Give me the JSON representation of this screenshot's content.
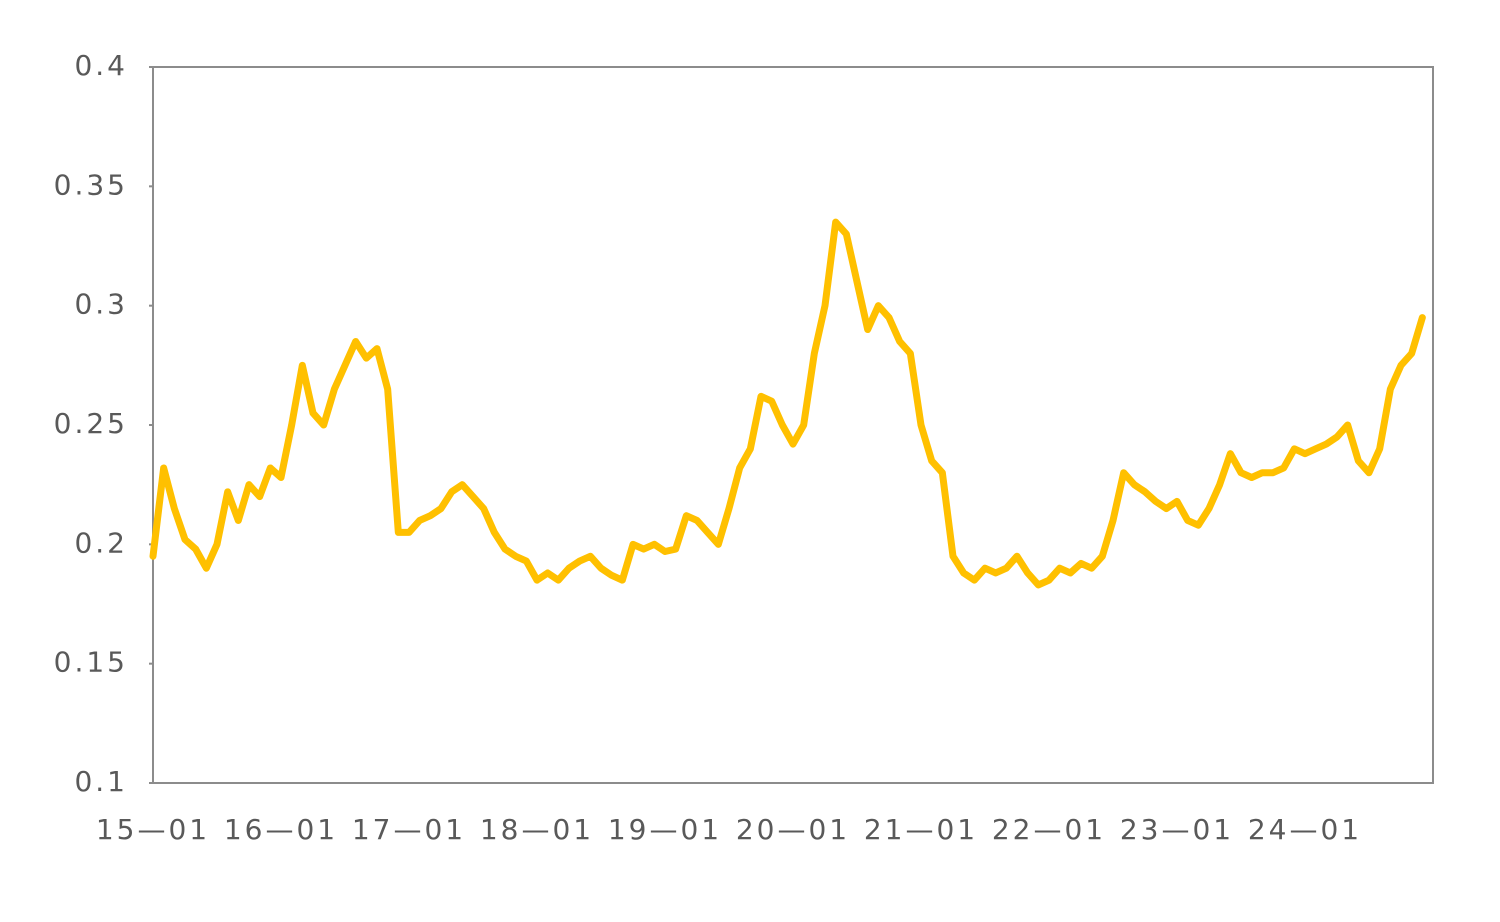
{
  "chart_data": {
    "type": "line",
    "categories": [
      "15—01",
      null,
      null,
      null,
      null,
      null,
      null,
      null,
      null,
      null,
      null,
      null,
      "16—01",
      null,
      null,
      null,
      null,
      null,
      null,
      null,
      null,
      null,
      null,
      null,
      "17—01",
      null,
      null,
      null,
      null,
      null,
      null,
      null,
      null,
      null,
      null,
      null,
      "18—01",
      null,
      null,
      null,
      null,
      null,
      null,
      null,
      null,
      null,
      null,
      null,
      "19—01",
      null,
      null,
      null,
      null,
      null,
      null,
      null,
      null,
      null,
      null,
      null,
      "20—01",
      null,
      null,
      null,
      null,
      null,
      null,
      null,
      null,
      null,
      null,
      null,
      "21—01",
      null,
      null,
      null,
      null,
      null,
      null,
      null,
      null,
      null,
      null,
      null,
      "22—01",
      null,
      null,
      null,
      null,
      null,
      null,
      null,
      null,
      null,
      null,
      null,
      "23—01",
      null,
      null,
      null,
      null,
      null,
      null,
      null,
      null,
      null,
      null,
      null,
      "24—01",
      null,
      null,
      null,
      null,
      null,
      null,
      null,
      null,
      null,
      null,
      null
    ],
    "series": [
      {
        "color": "#ffc000",
        "values": [
          0.195,
          0.232,
          0.215,
          0.202,
          0.198,
          0.19,
          0.2,
          0.222,
          0.21,
          0.225,
          0.22,
          0.232,
          0.228,
          0.25,
          0.275,
          0.255,
          0.25,
          0.265,
          0.275,
          0.285,
          0.278,
          0.282,
          0.265,
          0.205,
          0.205,
          0.21,
          0.212,
          0.215,
          0.222,
          0.225,
          0.22,
          0.215,
          0.205,
          0.198,
          0.195,
          0.193,
          0.185,
          0.188,
          0.185,
          0.19,
          0.193,
          0.195,
          0.19,
          0.187,
          0.185,
          0.2,
          0.198,
          0.2,
          0.197,
          0.198,
          0.212,
          0.21,
          0.205,
          0.2,
          0.215,
          0.232,
          0.24,
          0.262,
          0.26,
          0.25,
          0.242,
          0.25,
          0.28,
          0.3,
          0.335,
          0.33,
          0.31,
          0.29,
          0.3,
          0.295,
          0.285,
          0.28,
          0.25,
          0.235,
          0.23,
          0.195,
          0.188,
          0.185,
          0.19,
          0.188,
          0.19,
          0.195,
          0.188,
          0.183,
          0.185,
          0.19,
          0.188,
          0.192,
          0.19,
          0.195,
          0.21,
          0.23,
          0.225,
          0.222,
          0.218,
          0.215,
          0.218,
          0.21,
          0.208,
          0.215,
          0.225,
          0.238,
          0.23,
          0.228,
          0.23,
          0.23,
          0.232,
          0.24,
          0.238,
          0.24,
          0.242,
          0.245,
          0.25,
          0.235,
          0.23,
          0.24,
          0.265,
          0.275,
          0.28,
          0.295
        ]
      }
    ],
    "ylim": [
      0.1,
      0.4
    ],
    "yticks": [
      0.1,
      0.15,
      0.2,
      0.25,
      0.3,
      0.35,
      0.4
    ]
  }
}
